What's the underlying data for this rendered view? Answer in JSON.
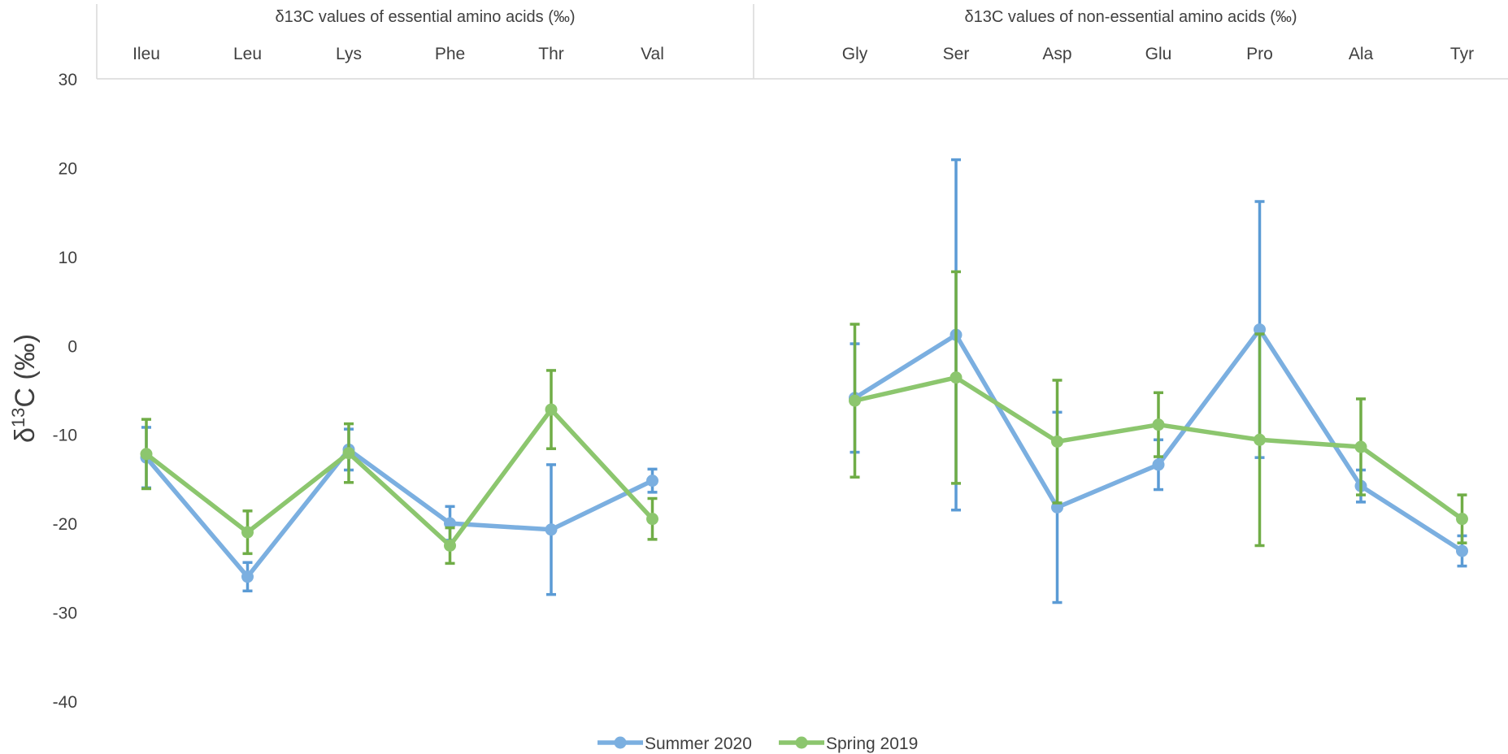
{
  "chart_data": {
    "type": "line",
    "ylabel": {
      "pre": "δ",
      "sup": "13",
      "post": "C (‰)"
    },
    "ylim": [
      -40,
      30
    ],
    "yticks": [
      30,
      20,
      10,
      0,
      -10,
      -20,
      -30,
      -40
    ],
    "grid": false,
    "legend_position": "bottom",
    "groups": [
      {
        "header": "δ13C values of essential amino acids (‰)",
        "categories": [
          "Ileu",
          "Leu",
          "Lys",
          "Phe",
          "Thr",
          "Val"
        ]
      },
      {
        "header": "δ13C values of non-essential amino acids (‰)",
        "categories": [
          "Gly",
          "Ser",
          "Asp",
          "Glu",
          "Pro",
          "Ala",
          "Tyr"
        ]
      }
    ],
    "categories": [
      "Ileu",
      "Leu",
      "Lys",
      "Phe",
      "Thr",
      "Val",
      "",
      "Gly",
      "Ser",
      "Asp",
      "Glu",
      "Pro",
      "Ala",
      "Tyr"
    ],
    "series": [
      {
        "name": "Summer 2020",
        "color": "#7BAFE0",
        "errcolor": "#5B9BD5",
        "values": [
          -12.6,
          -26.0,
          -11.7,
          -20.0,
          -20.7,
          -15.2,
          null,
          -5.9,
          1.2,
          -18.2,
          -13.4,
          1.8,
          -15.8,
          -23.1
        ],
        "err": [
          3.4,
          1.6,
          2.3,
          1.9,
          7.3,
          1.3,
          null,
          6.1,
          19.7,
          10.7,
          2.8,
          14.4,
          1.8,
          1.7
        ]
      },
      {
        "name": "Spring 2019",
        "color": "#8CC66E",
        "errcolor": "#70AD47",
        "values": [
          -12.2,
          -21.0,
          -12.1,
          -22.5,
          -7.2,
          -19.5,
          null,
          -6.2,
          -3.6,
          -10.8,
          -8.9,
          -10.6,
          -11.4,
          -19.5
        ],
        "err": [
          3.9,
          2.4,
          3.3,
          2.0,
          4.4,
          2.3,
          null,
          8.6,
          11.9,
          6.9,
          3.6,
          11.9,
          5.4,
          2.7
        ]
      }
    ]
  }
}
